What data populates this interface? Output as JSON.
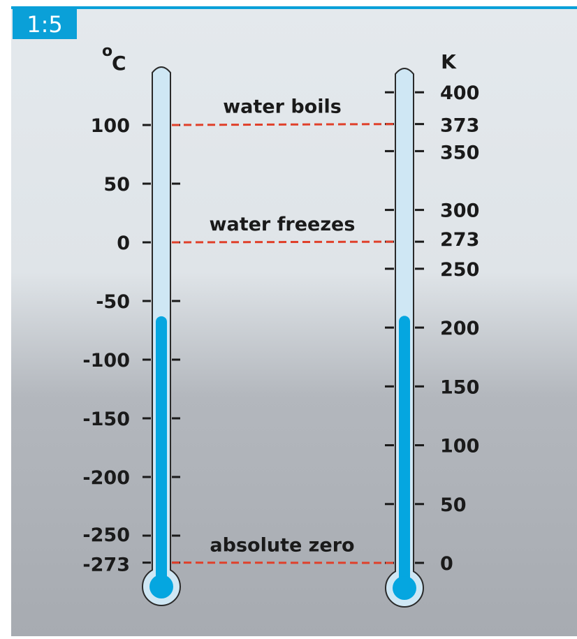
{
  "figure_label": "1:5",
  "celsius": {
    "unit": "°C",
    "unit_degree": "o",
    "unit_letter": "C",
    "ticks": [
      100,
      50,
      0,
      -50,
      -100,
      -150,
      -200,
      -250,
      -273
    ],
    "fill_level": -63
  },
  "kelvin": {
    "unit": "K",
    "ticks": [
      400,
      373,
      350,
      300,
      273,
      250,
      200,
      150,
      100,
      50,
      0
    ],
    "fill_level": 210
  },
  "annotations": [
    {
      "label": "water boils",
      "celsius": 100,
      "kelvin": 373
    },
    {
      "label": "water freezes",
      "celsius": 0,
      "kelvin": 273
    },
    {
      "label": "absolute zero",
      "celsius": -273,
      "kelvin": 0
    }
  ],
  "colors": {
    "accent": "#0aa0d8",
    "liquid": "#05a6e0",
    "tube": "#cfe7f4",
    "tube_outline": "#2a2a2a",
    "dashes": "#e0402a",
    "background_top": "#e3e8ec",
    "background_bottom": "#a9adb3"
  }
}
